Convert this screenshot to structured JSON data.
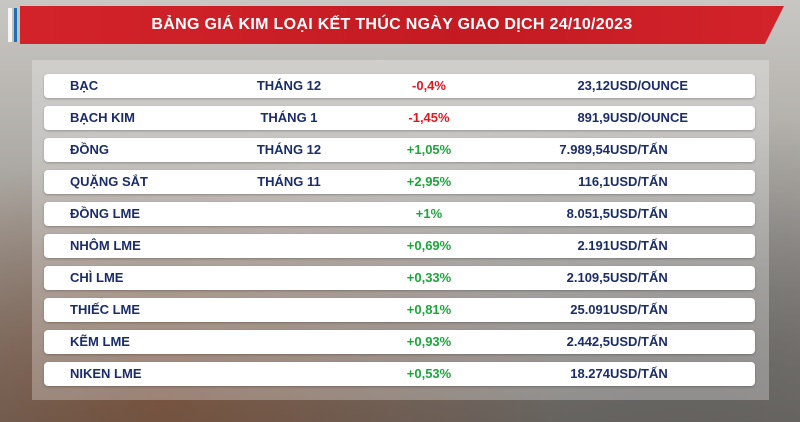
{
  "title": "BẢNG GIÁ KIM LOẠI KẾT THÚC NGÀY GIAO DỊCH 24/10/2023",
  "colors": {
    "title_bg": "#d3232a",
    "text": "#1a2c6b",
    "negative": "#e0171f",
    "positive": "#1aa73a"
  },
  "rows": [
    {
      "name": "BẠC",
      "month": "THÁNG 12",
      "change": "-0,4%",
      "direction": "down",
      "value": "23,12",
      "unit": "USD/OUNCE"
    },
    {
      "name": "BẠCH KIM",
      "month": "THÁNG 1",
      "change": "-1,45%",
      "direction": "down",
      "value": "891,9",
      "unit": "USD/OUNCE"
    },
    {
      "name": "ĐỒNG",
      "month": "THÁNG 12",
      "change": "+1,05%",
      "direction": "up",
      "value": "7.989,54",
      "unit": "USD/TẤN"
    },
    {
      "name": "QUẶNG SẮT",
      "month": "THÁNG 11",
      "change": "+2,95%",
      "direction": "up",
      "value": "116,1",
      "unit": "USD/TẤN"
    },
    {
      "name": "ĐỒNG LME",
      "month": "",
      "change": "+1%",
      "direction": "up",
      "value": "8.051,5",
      "unit": "USD/TẤN"
    },
    {
      "name": "NHÔM LME",
      "month": "",
      "change": "+0,69%",
      "direction": "up",
      "value": "2.191",
      "unit": "USD/TẤN"
    },
    {
      "name": "CHÌ LME",
      "month": "",
      "change": "+0,33%",
      "direction": "up",
      "value": "2.109,5",
      "unit": "USD/TẤN"
    },
    {
      "name": "THIẾC LME",
      "month": "",
      "change": "+0,81%",
      "direction": "up",
      "value": "25.091",
      "unit": "USD/TẤN"
    },
    {
      "name": "KẼM LME",
      "month": "",
      "change": "+0,93%",
      "direction": "up",
      "value": "2.442,5",
      "unit": "USD/TẤN"
    },
    {
      "name": "NIKEN LME",
      "month": "",
      "change": "+0,53%",
      "direction": "up",
      "value": "18.274",
      "unit": "USD/TẤN"
    }
  ]
}
